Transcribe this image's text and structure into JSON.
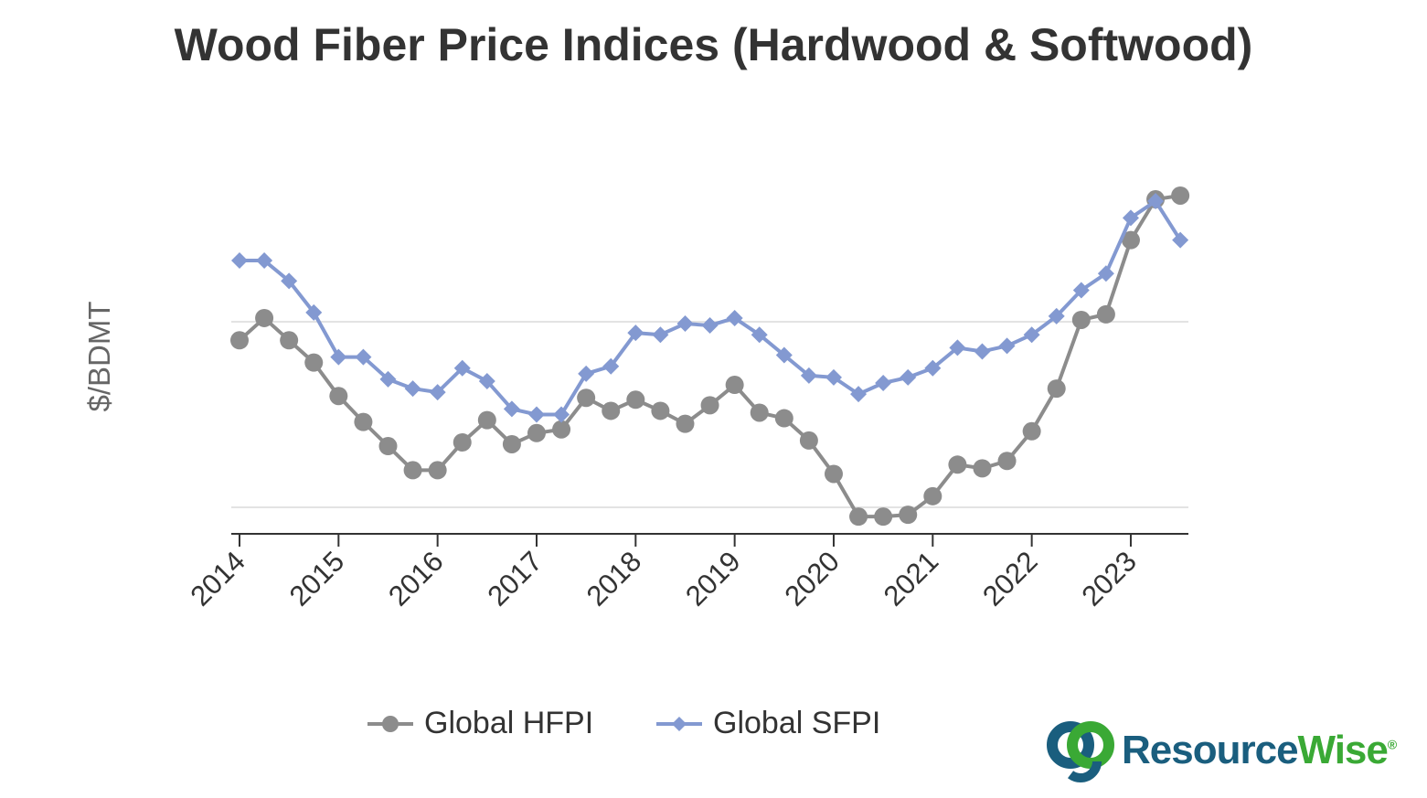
{
  "chart_data": {
    "type": "line",
    "title": "Wood Fiber Price Indices (Hardwood & Softwood)",
    "ylabel": "$/BDMT",
    "xlabel": "",
    "x_tick_labels": [
      "2014",
      "2015",
      "2016",
      "2017",
      "2018",
      "2019",
      "2020",
      "2021",
      "2022",
      "2023"
    ],
    "x": [
      2014.0,
      2014.25,
      2014.5,
      2014.75,
      2015.0,
      2015.25,
      2015.5,
      2015.75,
      2016.0,
      2016.25,
      2016.5,
      2016.75,
      2017.0,
      2017.25,
      2017.5,
      2017.75,
      2018.0,
      2018.25,
      2018.5,
      2018.75,
      2019.0,
      2019.25,
      2019.5,
      2019.75,
      2020.0,
      2020.25,
      2020.5,
      2020.75,
      2021.0,
      2021.25,
      2021.5,
      2021.75,
      2022.0,
      2022.25,
      2022.5,
      2022.75,
      2023.0,
      2023.25,
      2023.5
    ],
    "y_scale_note_units": "relative (no y tick labels shown)",
    "ylim": [
      -14,
      196
    ],
    "gridlines": [
      0,
      100
    ],
    "grid": true,
    "legend_position": "bottom",
    "series": [
      {
        "name": "Global HFPI",
        "color": "#8c8c8c",
        "marker": "circle",
        "values": [
          90,
          102,
          90,
          78,
          60,
          46,
          33,
          20,
          20,
          35,
          47,
          34,
          40,
          42,
          59,
          52,
          58,
          52,
          45,
          55,
          66,
          51,
          48,
          36,
          18,
          -5,
          -5,
          -4,
          6,
          23,
          21,
          25,
          41,
          64,
          101,
          104,
          144,
          166,
          168
        ]
      },
      {
        "name": "Global SFPI",
        "color": "#8399d1",
        "marker": "diamond",
        "values": [
          133,
          133,
          122,
          105,
          81,
          81,
          69,
          64,
          62,
          75,
          68,
          53,
          50,
          50,
          72,
          76,
          94,
          93,
          99,
          98,
          102,
          93,
          82,
          71,
          70,
          61,
          67,
          70,
          75,
          86,
          84,
          87,
          93,
          103,
          117,
          126,
          156,
          165,
          144
        ]
      }
    ]
  },
  "logo": {
    "text_a": "Resource",
    "text_b": "Wise",
    "mark": "®",
    "color_a": "#1a5e7e",
    "color_b": "#3aa935"
  }
}
